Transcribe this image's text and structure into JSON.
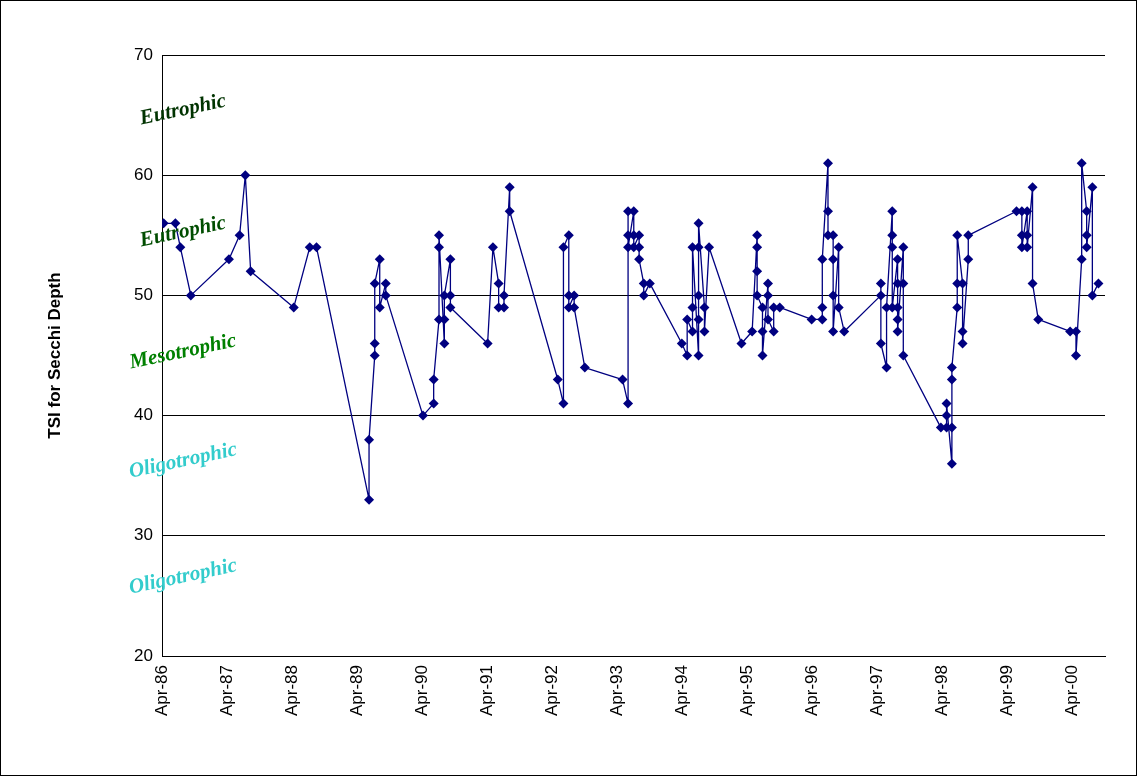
{
  "chart_data": {
    "type": "line",
    "ylabel": "TSI for Secchi Depth",
    "xlim": [
      "1986-04-01",
      "2000-10-01"
    ],
    "xticks": [
      {
        "value": "1986-04-01",
        "label": "Apr-86"
      },
      {
        "value": "1987-04-01",
        "label": "Apr-87"
      },
      {
        "value": "1988-04-01",
        "label": "Apr-88"
      },
      {
        "value": "1989-04-01",
        "label": "Apr-89"
      },
      {
        "value": "1990-04-01",
        "label": "Apr-90"
      },
      {
        "value": "1991-04-01",
        "label": "Apr-91"
      },
      {
        "value": "1992-04-01",
        "label": "Apr-92"
      },
      {
        "value": "1993-04-01",
        "label": "Apr-93"
      },
      {
        "value": "1994-04-01",
        "label": "Apr-94"
      },
      {
        "value": "1995-04-01",
        "label": "Apr-95"
      },
      {
        "value": "1996-04-01",
        "label": "Apr-96"
      },
      {
        "value": "1997-04-01",
        "label": "Apr-97"
      },
      {
        "value": "1998-04-01",
        "label": "Apr-98"
      },
      {
        "value": "1999-04-01",
        "label": "Apr-99"
      },
      {
        "value": "2000-04-01",
        "label": "Apr-00"
      }
    ],
    "ylim": [
      20,
      70
    ],
    "yticks": [
      20,
      30,
      40,
      50,
      60,
      70
    ],
    "grid": "y",
    "legend": false,
    "marker": "diamond",
    "line_style": "solid",
    "series": [
      {
        "color": "#000080",
        "x": [
          "1986-04-10",
          "1986-06-15",
          "1986-07-13",
          "1986-09-10",
          "1987-04-12",
          "1987-06-11",
          "1987-07-13",
          "1987-08-12",
          "1988-04-10",
          "1988-07-09",
          "1988-08-16",
          "1989-06-07",
          "1989-06-07",
          "1989-07-09",
          "1989-07-09",
          "1989-07-09",
          "1989-08-06",
          "1989-08-06",
          "1989-09-09",
          "1989-09-09",
          "1990-04-06",
          "1990-06-05",
          "1990-06-05",
          "1990-07-05",
          "1990-07-05",
          "1990-07-05",
          "1990-08-04",
          "1990-08-04",
          "1990-08-04",
          "1990-09-07",
          "1990-09-07",
          "1990-09-07",
          "1991-04-04",
          "1991-05-04",
          "1991-06-05",
          "1991-06-05",
          "1991-07-05",
          "1991-07-05",
          "1991-08-06",
          "1991-08-06",
          "1992-05-02",
          "1992-06-03",
          "1992-06-03",
          "1992-07-03",
          "1992-07-03",
          "1992-07-03",
          "1992-08-02",
          "1992-08-02",
          "1992-10-01",
          "1993-05-01",
          "1993-06-01",
          "1993-06-01",
          "1993-06-01",
          "1993-06-01",
          "1993-07-03",
          "1993-07-03",
          "1993-07-03",
          "1993-08-02",
          "1993-08-02",
          "1993-08-02",
          "1993-08-28",
          "1993-08-28",
          "1993-10-01",
          "1994-03-30",
          "1994-04-29",
          "1994-04-29",
          "1994-05-29",
          "1994-05-29",
          "1994-05-29",
          "1994-07-02",
          "1994-07-02",
          "1994-07-02",
          "1994-07-02",
          "1994-07-02",
          "1994-08-04",
          "1994-08-04",
          "1994-08-30",
          "1995-02-28",
          "1995-04-29",
          "1995-05-27",
          "1995-05-27",
          "1995-05-27",
          "1995-05-27",
          "1995-06-26",
          "1995-06-26",
          "1995-06-26",
          "1995-07-27",
          "1995-07-27",
          "1995-07-27",
          "1995-08-28",
          "1995-08-28",
          "1995-10-01",
          "1996-03-28",
          "1996-05-27",
          "1996-05-27",
          "1996-05-27",
          "1996-06-28",
          "1996-06-28",
          "1996-06-28",
          "1996-07-27",
          "1996-07-27",
          "1996-07-27",
          "1996-07-27",
          "1996-08-27",
          "1996-08-27",
          "1996-09-27",
          "1997-04-21",
          "1997-04-21",
          "1997-04-21",
          "1997-05-23",
          "1997-05-23",
          "1997-06-24",
          "1997-06-24",
          "1997-06-24",
          "1997-06-24",
          "1997-07-24",
          "1997-07-24",
          "1997-07-24",
          "1997-07-24",
          "1997-07-24",
          "1997-08-25",
          "1997-08-25",
          "1997-08-25",
          "1998-03-24",
          "1998-04-25",
          "1998-04-25",
          "1998-04-25",
          "1998-05-25",
          "1998-05-25",
          "1998-05-25",
          "1998-05-25",
          "1998-06-24",
          "1998-06-24",
          "1998-06-24",
          "1998-07-24",
          "1998-07-24",
          "1998-07-24",
          "1998-08-25",
          "1998-08-25",
          "1999-05-23",
          "1999-06-22",
          "1999-06-22",
          "1999-06-22",
          "1999-07-22",
          "1999-07-22",
          "1999-07-22",
          "1999-08-21",
          "1999-08-21",
          "1999-09-22",
          "2000-03-19",
          "2000-04-21",
          "2000-04-21",
          "2000-05-23",
          "2000-05-23",
          "2000-06-20",
          "2000-06-20",
          "2000-06-20",
          "2000-07-22",
          "2000-07-22",
          "2000-08-25"
        ],
        "values": [
          56,
          56,
          54,
          50,
          53,
          55,
          60,
          52,
          49,
          54,
          54,
          33,
          38,
          45,
          46,
          51,
          53,
          49,
          51,
          50,
          40,
          41,
          43,
          48,
          54,
          55,
          46,
          48,
          50,
          53,
          50,
          49,
          46,
          54,
          51,
          49,
          49,
          50,
          59,
          57,
          43,
          41,
          54,
          55,
          50,
          49,
          50,
          49,
          44,
          43,
          41,
          57,
          55,
          54,
          57,
          55,
          54,
          55,
          54,
          53,
          51,
          50,
          51,
          46,
          45,
          48,
          47,
          49,
          54,
          45,
          48,
          50,
          54,
          56,
          49,
          47,
          54,
          46,
          47,
          55,
          54,
          52,
          50,
          49,
          47,
          45,
          51,
          50,
          48,
          47,
          49,
          49,
          48,
          48,
          49,
          53,
          61,
          57,
          55,
          55,
          53,
          50,
          47,
          54,
          49,
          47,
          50,
          51,
          46,
          44,
          49,
          57,
          55,
          54,
          49,
          53,
          51,
          49,
          48,
          47,
          54,
          51,
          45,
          39,
          39,
          40,
          41,
          36,
          39,
          43,
          44,
          49,
          51,
          55,
          51,
          47,
          46,
          53,
          55,
          57,
          57,
          55,
          54,
          57,
          55,
          54,
          59,
          51,
          48,
          47,
          47,
          45,
          53,
          61,
          57,
          55,
          54,
          59,
          50,
          51
        ]
      }
    ],
    "annotations": [
      "Eutrophic",
      "Eutrophic",
      "Mesotrophic",
      "Oligotrophic",
      "Oligotrophic"
    ]
  }
}
